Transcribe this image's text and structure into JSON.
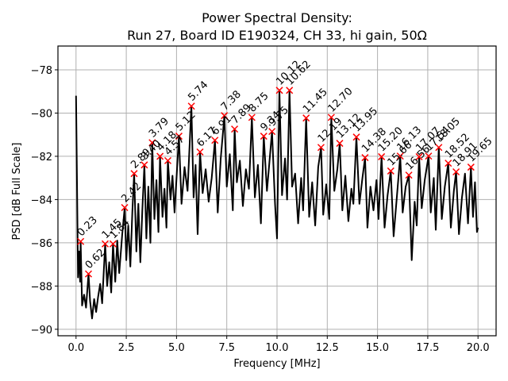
{
  "chart_data": {
    "type": "line",
    "title_line1": "Power Spectral Density:",
    "title_line2": "Run 27, Board ID E190324, CH 33, hi gain, 50Ω",
    "xlabel": "Frequency [MHz]",
    "ylabel": "PSD [dB Full Scale]",
    "xlim": [
      -0.9,
      20.9
    ],
    "ylim": [
      -90.3,
      -76.9
    ],
    "xticks": [
      0.0,
      2.5,
      5.0,
      7.5,
      10.0,
      12.5,
      15.0,
      17.5,
      20.0
    ],
    "xtick_labels": [
      "0.0",
      "2.5",
      "5.0",
      "7.5",
      "10.0",
      "12.5",
      "15.0",
      "17.5",
      "20.0"
    ],
    "yticks": [
      -90,
      -88,
      -86,
      -84,
      -82,
      -80,
      -78
    ],
    "ytick_labels": [
      "−90",
      "−88",
      "−86",
      "−84",
      "−82",
      "−80",
      "−78"
    ],
    "grid": true,
    "line_color": "#000000",
    "marker_color": "#ff0000",
    "series": [
      {
        "name": "PSD",
        "x": [
          0.0,
          0.1,
          0.15,
          0.2,
          0.23,
          0.3,
          0.4,
          0.5,
          0.62,
          0.7,
          0.8,
          0.9,
          1.0,
          1.1,
          1.2,
          1.3,
          1.45,
          1.55,
          1.65,
          1.75,
          1.84,
          1.95,
          2.05,
          2.15,
          2.3,
          2.42,
          2.5,
          2.6,
          2.7,
          2.8,
          2.89,
          3.0,
          3.1,
          3.2,
          3.3,
          3.4,
          3.5,
          3.6,
          3.7,
          3.79,
          3.9,
          4.0,
          4.1,
          4.18,
          4.3,
          4.4,
          4.5,
          4.57,
          4.7,
          4.8,
          4.9,
          5.0,
          5.12,
          5.25,
          5.4,
          5.55,
          5.74,
          5.85,
          5.95,
          6.05,
          6.17,
          6.3,
          6.45,
          6.6,
          6.75,
          6.91,
          7.05,
          7.2,
          7.38,
          7.5,
          7.65,
          7.8,
          7.89,
          8.0,
          8.15,
          8.3,
          8.45,
          8.6,
          8.75,
          8.9,
          9.05,
          9.2,
          9.34,
          9.5,
          9.6,
          9.75,
          9.9,
          10.0,
          10.12,
          10.25,
          10.4,
          10.5,
          10.62,
          10.75,
          10.9,
          11.05,
          11.2,
          11.3,
          11.45,
          11.6,
          11.75,
          11.9,
          12.05,
          12.19,
          12.3,
          12.45,
          12.6,
          12.7,
          12.85,
          13.0,
          13.12,
          13.25,
          13.4,
          13.55,
          13.7,
          13.8,
          13.95,
          14.1,
          14.25,
          14.38,
          14.5,
          14.65,
          14.8,
          14.95,
          15.05,
          15.2,
          15.35,
          15.5,
          15.66,
          15.8,
          15.95,
          16.13,
          16.25,
          16.4,
          16.56,
          16.7,
          16.85,
          16.95,
          17.07,
          17.2,
          17.35,
          17.54,
          17.65,
          17.8,
          17.9,
          18.05,
          18.2,
          18.35,
          18.52,
          18.65,
          18.8,
          18.91,
          19.05,
          19.2,
          19.35,
          19.5,
          19.65,
          19.75,
          19.85,
          19.95,
          20.0
        ],
        "y": [
          -79.2,
          -87.6,
          -86.4,
          -87.8,
          -85.94,
          -88.9,
          -88.4,
          -89.0,
          -87.44,
          -88.7,
          -89.5,
          -88.6,
          -89.2,
          -88.5,
          -87.9,
          -88.8,
          -86.05,
          -88.0,
          -86.9,
          -88.3,
          -86.05,
          -87.8,
          -85.9,
          -87.4,
          -85.6,
          -84.37,
          -86.8,
          -85.2,
          -87.1,
          -84.6,
          -82.8,
          -86.4,
          -84.2,
          -86.9,
          -84.5,
          -82.4,
          -85.8,
          -83.4,
          -86.0,
          -81.37,
          -84.9,
          -83.1,
          -85.5,
          -82.0,
          -84.8,
          -83.5,
          -85.3,
          -82.2,
          -84.0,
          -82.9,
          -84.6,
          -83.0,
          -81.07,
          -84.2,
          -82.5,
          -83.6,
          -79.68,
          -83.9,
          -82.4,
          -85.6,
          -81.8,
          -83.7,
          -82.6,
          -84.1,
          -83.0,
          -81.26,
          -84.6,
          -82.1,
          -80.12,
          -83.4,
          -81.9,
          -84.5,
          -80.74,
          -83.2,
          -82.2,
          -84.3,
          -82.6,
          -83.5,
          -80.2,
          -83.9,
          -82.4,
          -85.1,
          -81.07,
          -83.6,
          -82.5,
          -80.85,
          -84.2,
          -85.8,
          -78.95,
          -83.8,
          -82.1,
          -84.0,
          -78.95,
          -83.4,
          -82.8,
          -85.1,
          -83.0,
          -84.5,
          -80.23,
          -84.8,
          -83.2,
          -85.2,
          -82.5,
          -81.59,
          -84.7,
          -83.3,
          -84.9,
          -80.2,
          -83.6,
          -82.6,
          -81.4,
          -84.5,
          -82.9,
          -85.0,
          -83.5,
          -84.2,
          -81.11,
          -84.2,
          -83.0,
          -82.06,
          -85.3,
          -83.4,
          -84.5,
          -83.1,
          -84.9,
          -82.02,
          -85.3,
          -83.8,
          -82.68,
          -85.7,
          -84.0,
          -81.99,
          -84.6,
          -83.4,
          -82.87,
          -86.8,
          -84.1,
          -85.2,
          -82.02,
          -84.4,
          -83.1,
          -81.99,
          -84.6,
          -83.0,
          -85.4,
          -81.59,
          -84.9,
          -83.4,
          -82.32,
          -85.3,
          -83.6,
          -82.72,
          -85.6,
          -83.9,
          -82.8,
          -85.1,
          -82.5,
          -84.8,
          -83.2,
          -85.5,
          -85.3
        ]
      }
    ],
    "peaks": [
      {
        "x": 0.23,
        "y": -85.94,
        "label": "0.23"
      },
      {
        "x": 0.62,
        "y": -87.44,
        "label": "0.62"
      },
      {
        "x": 1.45,
        "y": -86.05,
        "label": "1.45"
      },
      {
        "x": 1.84,
        "y": -86.05,
        "label": "1.84"
      },
      {
        "x": 2.42,
        "y": -84.37,
        "label": "2.42"
      },
      {
        "x": 2.89,
        "y": -82.8,
        "label": "2.89"
      },
      {
        "x": 3.4,
        "y": -82.4,
        "label": "3.40"
      },
      {
        "x": 3.79,
        "y": -81.37,
        "label": "3.79"
      },
      {
        "x": 4.18,
        "y": -82.0,
        "label": "4.18"
      },
      {
        "x": 4.57,
        "y": -82.2,
        "label": "4.57"
      },
      {
        "x": 5.12,
        "y": -81.07,
        "label": "5.12"
      },
      {
        "x": 5.74,
        "y": -79.68,
        "label": "5.74"
      },
      {
        "x": 6.17,
        "y": -81.8,
        "label": "6.17"
      },
      {
        "x": 6.91,
        "y": -81.26,
        "label": "6.91"
      },
      {
        "x": 7.38,
        "y": -80.12,
        "label": "7.38"
      },
      {
        "x": 7.89,
        "y": -80.74,
        "label": "7.89"
      },
      {
        "x": 8.75,
        "y": -80.2,
        "label": "8.75"
      },
      {
        "x": 9.34,
        "y": -81.07,
        "label": "9.34"
      },
      {
        "x": 9.75,
        "y": -80.85,
        "label": "9.75"
      },
      {
        "x": 10.12,
        "y": -78.95,
        "label": "10.12"
      },
      {
        "x": 10.62,
        "y": -78.95,
        "label": "10.62"
      },
      {
        "x": 11.45,
        "y": -80.23,
        "label": "11.45"
      },
      {
        "x": 12.19,
        "y": -81.59,
        "label": "12.19"
      },
      {
        "x": 12.7,
        "y": -80.2,
        "label": "12.70"
      },
      {
        "x": 13.12,
        "y": -81.4,
        "label": "13.12"
      },
      {
        "x": 13.95,
        "y": -81.11,
        "label": "13.95"
      },
      {
        "x": 14.38,
        "y": -82.06,
        "label": "14.38"
      },
      {
        "x": 15.2,
        "y": -82.02,
        "label": "15.20"
      },
      {
        "x": 15.66,
        "y": -82.68,
        "label": "15.66"
      },
      {
        "x": 16.13,
        "y": -81.99,
        "label": "16.13"
      },
      {
        "x": 16.56,
        "y": -82.87,
        "label": "16.56"
      },
      {
        "x": 17.07,
        "y": -82.02,
        "label": "17.07"
      },
      {
        "x": 17.54,
        "y": -81.99,
        "label": "17.54"
      },
      {
        "x": 18.05,
        "y": -81.59,
        "label": "18.05"
      },
      {
        "x": 18.52,
        "y": -82.32,
        "label": "18.52"
      },
      {
        "x": 18.91,
        "y": -82.72,
        "label": "18.91"
      },
      {
        "x": 19.65,
        "y": -82.5,
        "label": "19.65"
      }
    ]
  }
}
